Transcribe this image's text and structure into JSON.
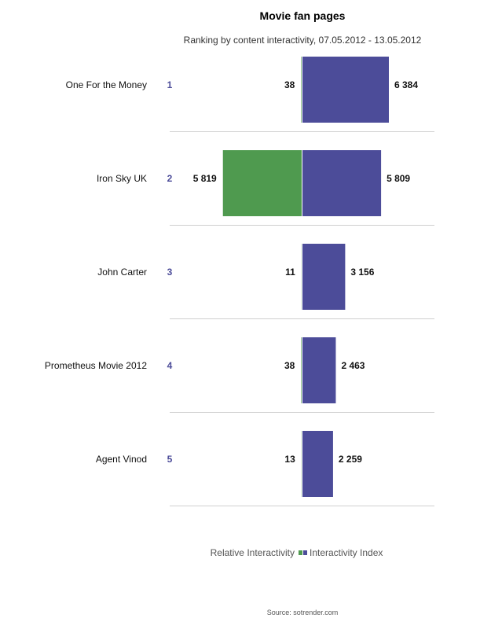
{
  "chart_data": {
    "type": "bar",
    "title": "Movie fan pages",
    "subtitle": "Ranking by content interactivity, 07.05.2012 - 13.05.2012",
    "categories": [
      "One For the Money",
      "Iron Sky UK",
      "John Carter",
      "Prometheus Movie 2012",
      "Agent Vinod"
    ],
    "ranks": [
      "1",
      "2",
      "3",
      "4",
      "5"
    ],
    "series": [
      {
        "name": "Relative Interactivity",
        "color": "#4f9a4f",
        "values": [
          38,
          5819,
          11,
          38,
          13
        ],
        "labels": [
          "38",
          "5 819",
          "11",
          "38",
          "13"
        ],
        "side": "left"
      },
      {
        "name": "Interactivity Index",
        "color": "#4c4c99",
        "values": [
          6384,
          5809,
          3156,
          2463,
          2259
        ],
        "labels": [
          "6 384",
          "5 809",
          "3 156",
          "2 463",
          "2 259"
        ],
        "side": "right"
      }
    ],
    "legend": {
      "position": "bottom"
    },
    "grid": false,
    "source": "Source: sotrender.com"
  }
}
